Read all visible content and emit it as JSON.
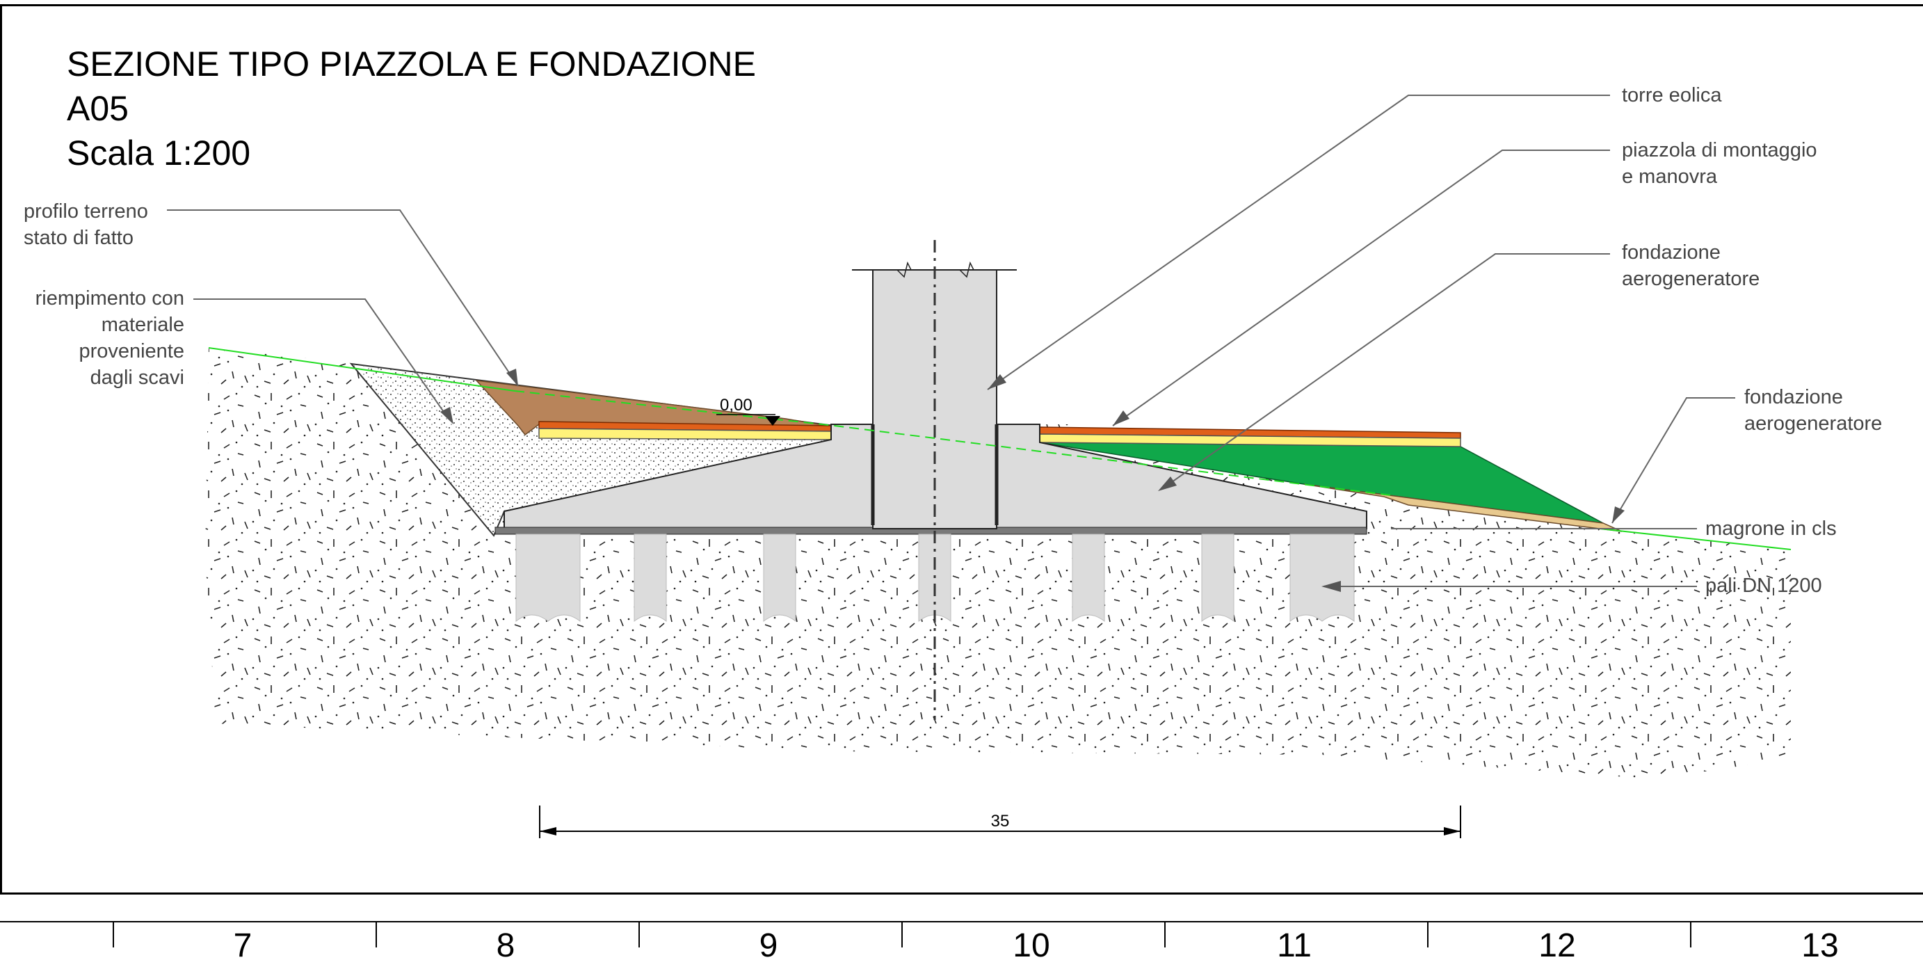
{
  "title": {
    "line1": "SEZIONE TIPO PIAZZOLA E  FONDAZIONE",
    "line2": "A05",
    "line3": "Scala 1:200"
  },
  "labels": {
    "profilo_1": "profilo terreno",
    "profilo_2": "stato di fatto",
    "riempimento_1": "riempimento con",
    "riempimento_2": "materiale",
    "riempimento_3": "proveniente",
    "riempimento_4": "dagli scavi",
    "torre": "torre eolica",
    "piazzola_1": "piazzola di montaggio",
    "piazzola_2": "e manovra",
    "fondazione_1": "fondazione",
    "fondazione_2": "aerogeneratore",
    "fondazione_b_1": "fondazione",
    "fondazione_b_2": "aerogeneratore",
    "magrone": "magrone in cls",
    "pali": "pali DN 1200"
  },
  "dimensions": {
    "elevation": "0,00",
    "width": "35"
  },
  "grid_columns": [
    "7",
    "8",
    "9",
    "10",
    "11",
    "12",
    "13"
  ],
  "colors": {
    "ground_profile": "#22dd22",
    "earth_fill": "#b8845a",
    "surface_layer": "#e0601a",
    "base_layer": "#fff27a",
    "green_slope": "#10a84a",
    "concrete": "#dcdcdc",
    "lean_concrete": "#7a7a7a",
    "gravel": "#e8c98e"
  }
}
